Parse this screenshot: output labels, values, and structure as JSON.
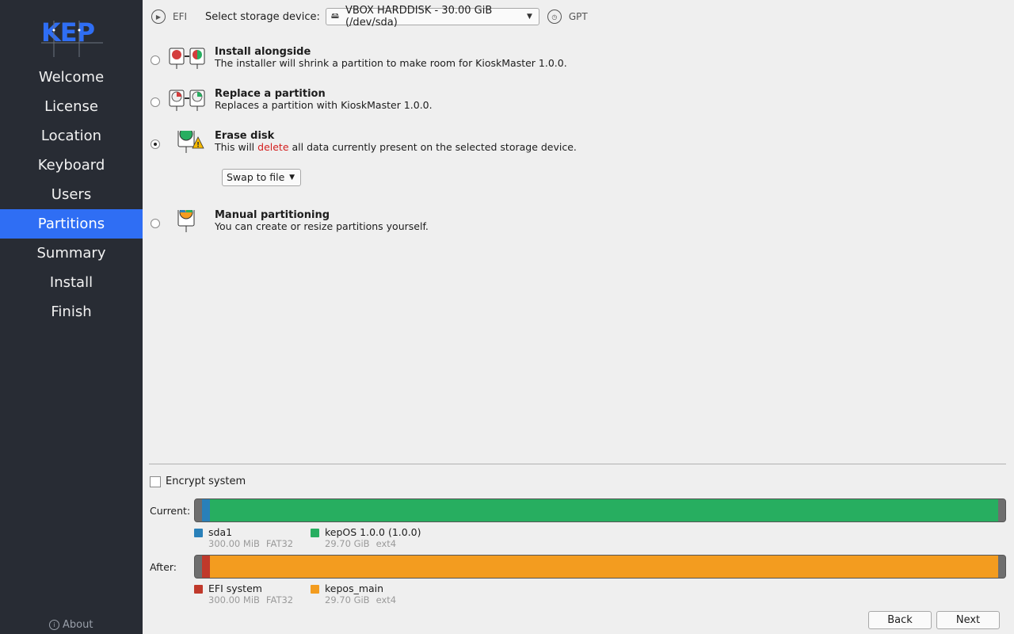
{
  "sidebar": {
    "logo_text": "KEP",
    "items": [
      {
        "label": "Welcome",
        "active": false
      },
      {
        "label": "License",
        "active": false
      },
      {
        "label": "Location",
        "active": false
      },
      {
        "label": "Keyboard",
        "active": false
      },
      {
        "label": "Users",
        "active": false
      },
      {
        "label": "Partitions",
        "active": true
      },
      {
        "label": "Summary",
        "active": false
      },
      {
        "label": "Install",
        "active": false
      },
      {
        "label": "Finish",
        "active": false
      }
    ],
    "about_label": "About"
  },
  "toolbar": {
    "boot_type": "EFI",
    "device_label": "Select storage device:",
    "device_value": "VBOX HARDDISK - 30.00 GiB (/dev/sda)",
    "partition_table": "GPT"
  },
  "options": [
    {
      "title": "Install alongside",
      "description": "The installer will shrink a partition to make room for KioskMaster 1.0.0.",
      "checked": false
    },
    {
      "title": "Replace a partition",
      "description": "Replaces a partition with KioskMaster 1.0.0.",
      "checked": false
    },
    {
      "title": "Erase disk",
      "description_pre": "This will ",
      "description_danger": "delete",
      "description_post": " all data currently present on the selected storage device.",
      "checked": true
    },
    {
      "title": "Manual partitioning",
      "description": "You can create or resize partitions yourself.",
      "checked": false
    }
  ],
  "swap": {
    "value": "Swap to file"
  },
  "encrypt": {
    "label": "Encrypt system",
    "checked": false
  },
  "current": {
    "label": "Current:",
    "partitions": [
      {
        "name": "sda1",
        "size": "300.00 MiB",
        "fs": "FAT32",
        "color": "#2980b9",
        "fraction": 0.0098
      },
      {
        "name": "kepOS 1.0.0 (1.0.0)",
        "size": "29.70 GiB",
        "fs": "ext4",
        "color": "#27ae60",
        "fraction": 0.99
      }
    ]
  },
  "after": {
    "label": "After:",
    "partitions": [
      {
        "name": "EFI system",
        "size": "300.00 MiB",
        "fs": "FAT32",
        "color": "#c0392b",
        "fraction": 0.0098
      },
      {
        "name": "kepos_main",
        "size": "29.70 GiB",
        "fs": "ext4",
        "color": "#f39c1f",
        "fraction": 0.99
      }
    ]
  },
  "buttons": {
    "back": "Back",
    "next": "Next"
  }
}
